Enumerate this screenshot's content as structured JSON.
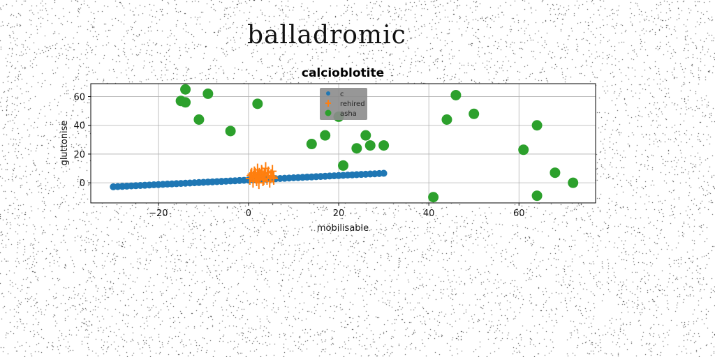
{
  "page": {
    "heading": "balladromic"
  },
  "chart_data": {
    "type": "scatter",
    "title": "calcioblotite",
    "xlabel": "mobilisable",
    "ylabel": "gluttonise",
    "xlim": [
      -35,
      77
    ],
    "ylim": [
      -14,
      69
    ],
    "xticks": [
      -20,
      0,
      20,
      40,
      60
    ],
    "yticks": [
      0,
      20,
      40,
      60
    ],
    "x_tick_labels": [
      "−20",
      "0",
      "20",
      "40",
      "60"
    ],
    "y_tick_labels": [
      "0",
      "20",
      "40",
      "60"
    ],
    "grid": true,
    "legend_position": "top-center",
    "series": [
      {
        "name": "c",
        "marker": "circle",
        "color": "#1f77b4",
        "line_fit": {
          "x_start": -30,
          "x_end": 30,
          "y_start": -2.8,
          "y_end": 6.6,
          "count": 61
        }
      },
      {
        "name": "rehired",
        "marker": "plus",
        "color": "#ff7f0e",
        "points": [
          [
            0.3,
            3
          ],
          [
            0.7,
            6
          ],
          [
            1.0,
            1
          ],
          [
            1.3,
            7
          ],
          [
            1.6,
            4
          ],
          [
            2.0,
            9
          ],
          [
            2.3,
            0
          ],
          [
            2.6,
            5
          ],
          [
            2.9,
            8
          ],
          [
            3.2,
            2
          ],
          [
            3.5,
            6
          ],
          [
            3.8,
            10
          ],
          [
            4.1,
            3
          ],
          [
            4.4,
            7
          ],
          [
            4.7,
            1
          ],
          [
            5.0,
            5
          ],
          [
            5.3,
            8
          ],
          [
            5.6,
            3
          ],
          [
            1.1,
            4
          ],
          [
            2.4,
            6
          ],
          [
            3.4,
            3
          ],
          [
            4.2,
            5
          ],
          [
            1.8,
            2
          ],
          [
            3.0,
            7
          ],
          [
            4.9,
            4
          ],
          [
            0.5,
            5
          ],
          [
            2.1,
            4
          ],
          [
            3.7,
            5
          ],
          [
            5.5,
            4
          ],
          [
            1.5,
            6
          ]
        ]
      },
      {
        "name": "asha",
        "marker": "circle",
        "color": "#2ca02c",
        "points": [
          [
            -14,
            65
          ],
          [
            -15,
            57
          ],
          [
            -14,
            56
          ],
          [
            -9,
            62
          ],
          [
            -11,
            44
          ],
          [
            -4,
            36
          ],
          [
            2,
            55
          ],
          [
            14,
            27
          ],
          [
            17,
            33
          ],
          [
            20,
            46
          ],
          [
            21,
            12
          ],
          [
            24,
            24
          ],
          [
            26,
            33
          ],
          [
            27,
            26
          ],
          [
            30,
            26
          ],
          [
            41,
            -10
          ],
          [
            44,
            44
          ],
          [
            46,
            61
          ],
          [
            50,
            48
          ],
          [
            61,
            23
          ],
          [
            64,
            40
          ],
          [
            64,
            -9
          ],
          [
            68,
            7
          ],
          [
            72,
            0
          ]
        ]
      }
    ]
  }
}
